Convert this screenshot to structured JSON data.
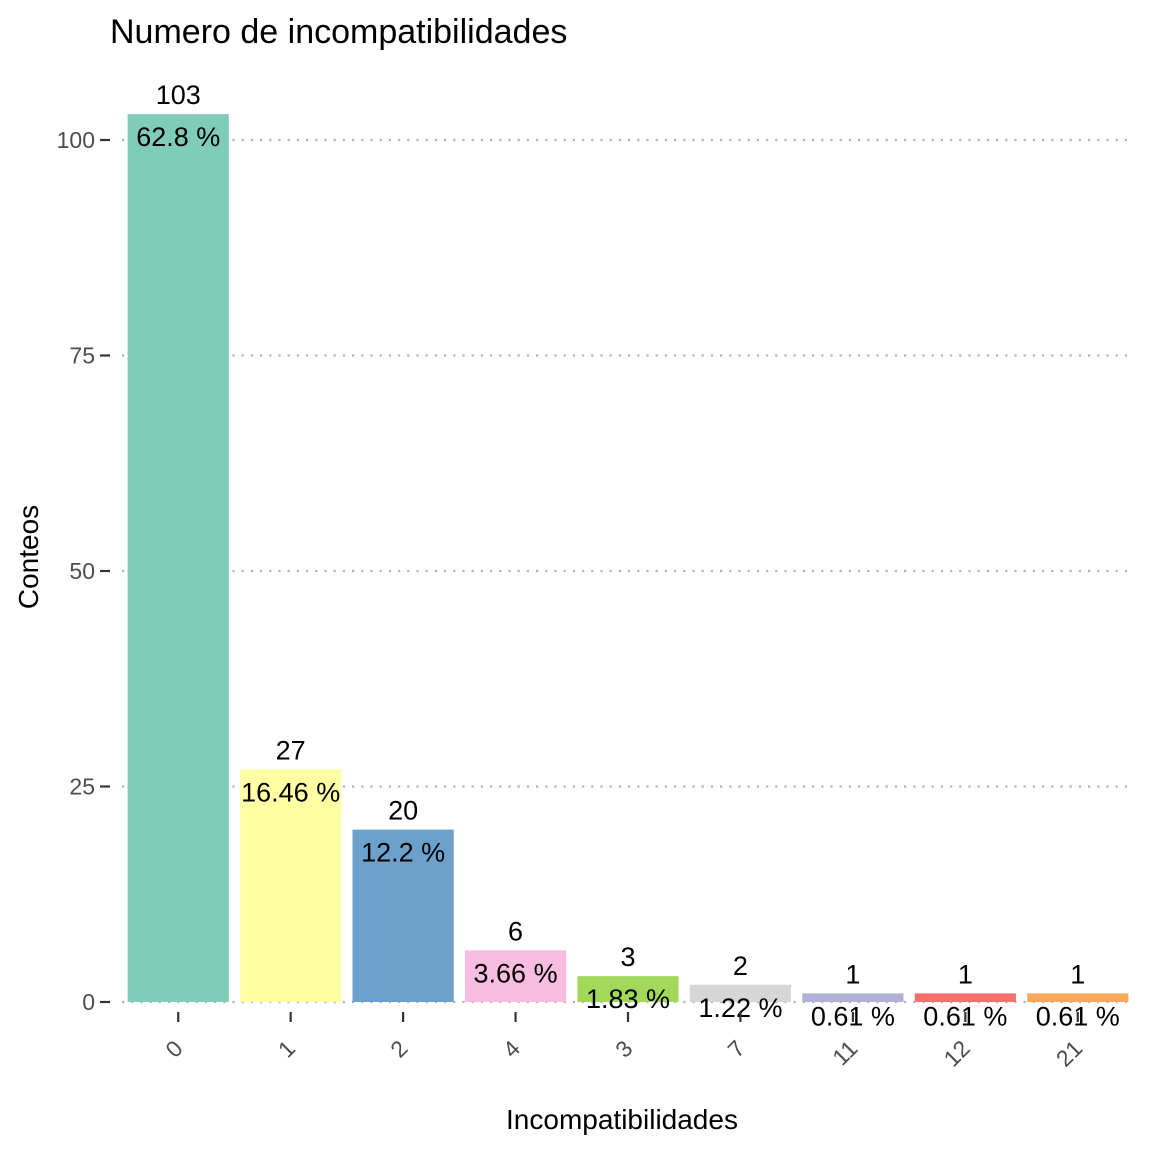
{
  "chart_data": {
    "type": "bar",
    "title": "Numero de incompatibilidades",
    "xlabel": "Incompatibilidades",
    "ylabel": "Conteos",
    "categories": [
      "0",
      "1",
      "2",
      "4",
      "3",
      "7",
      "11",
      "12",
      "21"
    ],
    "values": [
      103,
      27,
      20,
      6,
      3,
      2,
      1,
      1,
      1
    ],
    "percent_labels": [
      "62.8 %",
      "16.46 %",
      "12.2 %",
      "3.66 %",
      "1.83 %",
      "1.22 %",
      "0.61 %",
      "0.61 %",
      "0.61 %"
    ],
    "colors": [
      "#7fccba",
      "#ffffa3",
      "#6ca1cb",
      "#f8bde0",
      "#a2d95a",
      "#d6d6d6",
      "#b3b0d7",
      "#f5706a",
      "#fba759"
    ],
    "yticks": [
      0,
      25,
      50,
      75,
      100
    ],
    "ylim": [
      0,
      103
    ],
    "grid": "horizontal dotted",
    "legend": "none",
    "tick_color": "#333333",
    "grid_color": "#b3b3b3"
  }
}
